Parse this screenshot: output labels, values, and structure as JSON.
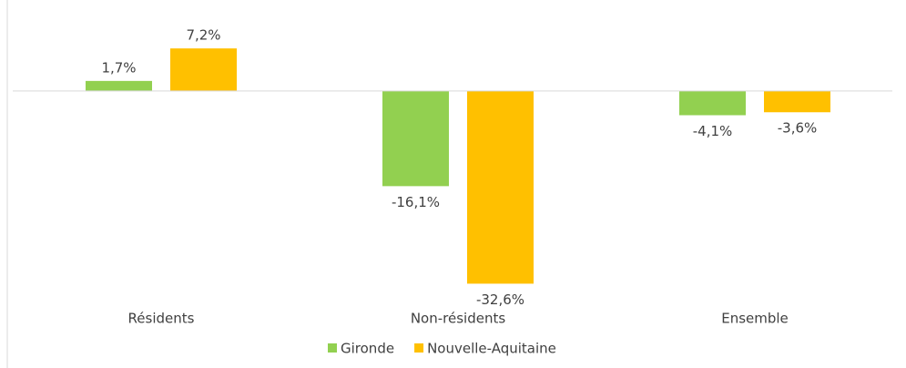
{
  "chart_data": {
    "type": "bar",
    "categories": [
      "Résidents",
      "Non-résidents",
      "Ensemble"
    ],
    "series": [
      {
        "name": "Gironde",
        "color": "#92d050",
        "values": [
          1.7,
          -16.1,
          -4.1
        ],
        "value_labels": [
          "1,7%",
          "-16,1%",
          "-4,1%"
        ]
      },
      {
        "name": "Nouvelle-Aquitaine",
        "color": "#ffc000",
        "values": [
          7.2,
          -32.6,
          -3.6
        ],
        "value_labels": [
          "7,2%",
          "-32,6%",
          "-3,6%"
        ]
      }
    ],
    "ylim": [
      -35,
      10
    ]
  }
}
